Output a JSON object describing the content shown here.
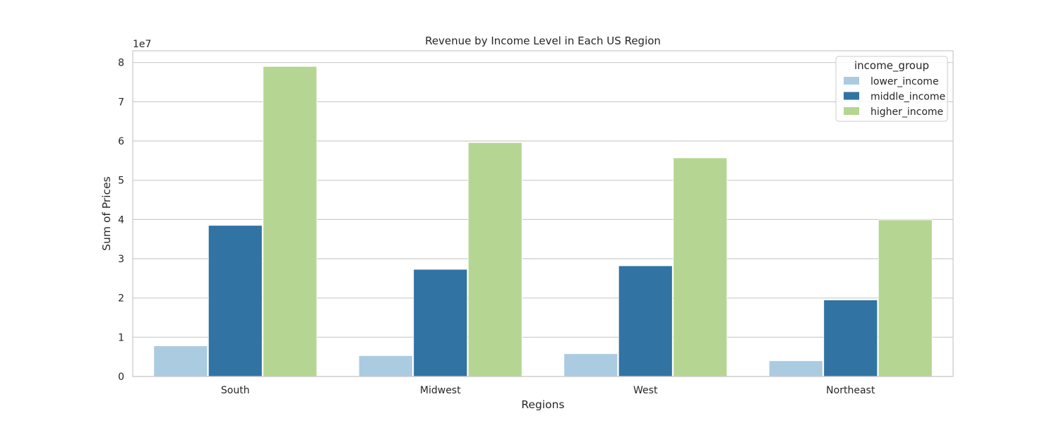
{
  "chart_data": {
    "type": "bar",
    "title": "Revenue by Income Level in Each US Region",
    "xlabel": "Regions",
    "ylabel": "Sum of Prices",
    "y_offset_label": "1e7",
    "categories": [
      "South",
      "Midwest",
      "West",
      "Northeast"
    ],
    "series": [
      {
        "name": "lower_income",
        "color": "#abcbe1",
        "values": [
          7800000,
          5300000,
          5800000,
          4000000
        ]
      },
      {
        "name": "middle_income",
        "color": "#3173a3",
        "values": [
          38500000,
          27300000,
          28200000,
          19500000
        ]
      },
      {
        "name": "higher_income",
        "color": "#b5d692",
        "values": [
          79000000,
          59600000,
          55700000,
          39900000
        ]
      }
    ],
    "ylim": [
      0,
      83000000
    ],
    "yticks": [
      0,
      1,
      2,
      3,
      4,
      5,
      6,
      7,
      8
    ],
    "ytick_scale": 10000000,
    "grid": true,
    "legend": {
      "title": "income_group",
      "placement": "top-right"
    }
  }
}
